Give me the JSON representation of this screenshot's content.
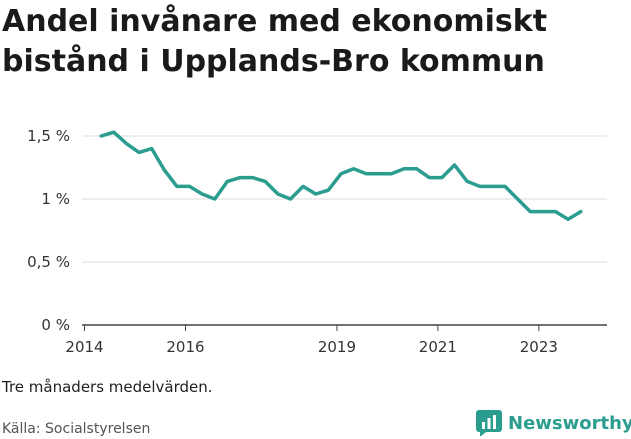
{
  "chart_data": {
    "type": "line",
    "title": "Andel invånare med ekonomiskt bistånd i Upplands-Bro kommun",
    "xlabel": "",
    "ylabel": "",
    "x_ticks": [
      {
        "value": 2014,
        "label": "2014"
      },
      {
        "value": 2016,
        "label": "2016"
      },
      {
        "value": 2019,
        "label": "2019"
      },
      {
        "value": 2021,
        "label": "2021"
      },
      {
        "value": 2023,
        "label": "2023"
      }
    ],
    "y_ticks": [
      {
        "value": 0,
        "label": "0 %"
      },
      {
        "value": 0.5,
        "label": "0,5 %"
      },
      {
        "value": 1,
        "label": "1 %"
      },
      {
        "value": 1.5,
        "label": "1,5 %"
      }
    ],
    "xlim": [
      2013.95,
      2024.35
    ],
    "ylim": [
      0,
      1.5
    ],
    "grid": true,
    "series": [
      {
        "name": "",
        "color": "#2a9d8f",
        "points": [
          [
            2014.33,
            1.5
          ],
          [
            2014.58,
            1.53
          ],
          [
            2014.83,
            1.44
          ],
          [
            2015.08,
            1.37
          ],
          [
            2015.33,
            1.4
          ],
          [
            2015.58,
            1.23
          ],
          [
            2015.83,
            1.1
          ],
          [
            2016.08,
            1.1
          ],
          [
            2016.33,
            1.04
          ],
          [
            2016.58,
            1.0
          ],
          [
            2016.83,
            1.14
          ],
          [
            2017.08,
            1.17
          ],
          [
            2017.33,
            1.17
          ],
          [
            2017.58,
            1.14
          ],
          [
            2017.83,
            1.04
          ],
          [
            2018.08,
            1.0
          ],
          [
            2018.33,
            1.1
          ],
          [
            2018.58,
            1.04
          ],
          [
            2018.83,
            1.07
          ],
          [
            2019.08,
            1.2
          ],
          [
            2019.33,
            1.24
          ],
          [
            2019.58,
            1.2
          ],
          [
            2019.83,
            1.2
          ],
          [
            2020.08,
            1.2
          ],
          [
            2020.33,
            1.24
          ],
          [
            2020.58,
            1.24
          ],
          [
            2020.83,
            1.17
          ],
          [
            2021.08,
            1.17
          ],
          [
            2021.33,
            1.27
          ],
          [
            2021.58,
            1.14
          ],
          [
            2021.83,
            1.1
          ],
          [
            2022.08,
            1.1
          ],
          [
            2022.33,
            1.1
          ],
          [
            2022.58,
            1.0
          ],
          [
            2022.83,
            0.9
          ],
          [
            2023.08,
            0.9
          ],
          [
            2023.33,
            0.9
          ],
          [
            2023.58,
            0.84
          ],
          [
            2023.83,
            0.9
          ]
        ]
      }
    ]
  },
  "note": "Tre månaders medelvärden.",
  "source": "Källa: Socialstyrelsen",
  "brand": {
    "name": "Newsworthy",
    "color": "#2a9d8f",
    "icon": "bar-chart-logo-icon"
  },
  "colors": {
    "grid": "#dddddd",
    "axis": "#444444",
    "line": "#2a9d8f"
  }
}
